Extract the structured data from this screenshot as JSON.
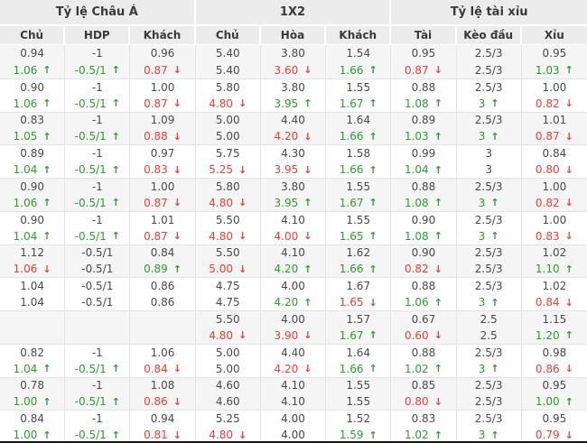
{
  "colors": {
    "header_bg": "#ececec",
    "row_bg": "#ffffff",
    "row_alt_bg": "#f5f5f5",
    "border": "#e3e3e3",
    "text": "#4a4a4a",
    "up_green": "#2e9c2e",
    "down_red": "#ef3e36"
  },
  "icons": {
    "up_arrow": "↑",
    "down_arrow": "↓"
  },
  "header": {
    "groups": [
      {
        "label": "Tỷ lệ Châu Á",
        "columns": [
          "Chủ",
          "HDP",
          "Khách"
        ]
      },
      {
        "label": "1X2",
        "columns": [
          "Chủ",
          "Hòa",
          "Khách"
        ]
      },
      {
        "label": "Tỷ lệ tài xỉu",
        "columns": [
          "Tài",
          "Kèo đầu",
          "Xỉu"
        ]
      }
    ]
  },
  "rows": [
    {
      "alt": true,
      "cells": [
        [
          "0.94",
          "1.06",
          "up"
        ],
        [
          "-1",
          "-0.5/1",
          "up"
        ],
        [
          "0.96",
          "0.87",
          "down"
        ],
        [
          "5.40",
          "5.40",
          ""
        ],
        [
          "3.80",
          "3.60",
          "down"
        ],
        [
          "1.54",
          "1.66",
          "up"
        ],
        [
          "0.95",
          "0.87",
          "down"
        ],
        [
          "2.5/3",
          "2.5/3",
          ""
        ],
        [
          "0.95",
          "1.03",
          "up"
        ]
      ]
    },
    {
      "alt": false,
      "cells": [
        [
          "0.90",
          "1.06",
          "up"
        ],
        [
          "-1",
          "-0.5/1",
          "up"
        ],
        [
          "1.00",
          "0.87",
          "down"
        ],
        [
          "5.80",
          "4.80",
          "down"
        ],
        [
          "3.80",
          "3.95",
          "up"
        ],
        [
          "1.55",
          "1.67",
          "up"
        ],
        [
          "0.88",
          "1.08",
          "up"
        ],
        [
          "2.5/3",
          "3",
          "up"
        ],
        [
          "1.00",
          "0.82",
          "down"
        ]
      ]
    },
    {
      "alt": true,
      "cells": [
        [
          "0.83",
          "1.05",
          "up"
        ],
        [
          "-1",
          "-0.5/1",
          "up"
        ],
        [
          "1.09",
          "0.88",
          "down"
        ],
        [
          "5.00",
          "5.00",
          ""
        ],
        [
          "4.40",
          "4.20",
          "down"
        ],
        [
          "1.64",
          "1.66",
          "up"
        ],
        [
          "0.89",
          "1.03",
          "up"
        ],
        [
          "2.5/3",
          "3",
          "up"
        ],
        [
          "1.01",
          "0.87",
          "down"
        ]
      ]
    },
    {
      "alt": false,
      "cells": [
        [
          "0.89",
          "1.04",
          "up"
        ],
        [
          "-1",
          "-0.5/1",
          "up"
        ],
        [
          "0.97",
          "0.83",
          "down"
        ],
        [
          "5.75",
          "5.25",
          "down"
        ],
        [
          "4.30",
          "3.95",
          "down"
        ],
        [
          "1.58",
          "1.66",
          "up"
        ],
        [
          "0.99",
          "1.04",
          "up"
        ],
        [
          "3",
          "3",
          ""
        ],
        [
          "0.84",
          "0.80",
          "down"
        ]
      ]
    },
    {
      "alt": true,
      "cells": [
        [
          "0.90",
          "1.06",
          "up"
        ],
        [
          "-1",
          "-0.5/1",
          "up"
        ],
        [
          "1.00",
          "0.87",
          "down"
        ],
        [
          "5.80",
          "4.80",
          "down"
        ],
        [
          "3.80",
          "3.95",
          "up"
        ],
        [
          "1.55",
          "1.67",
          "up"
        ],
        [
          "0.88",
          "1.08",
          "up"
        ],
        [
          "2.5/3",
          "3",
          "up"
        ],
        [
          "1.00",
          "0.82",
          "down"
        ]
      ]
    },
    {
      "alt": false,
      "cells": [
        [
          "0.90",
          "1.04",
          "up"
        ],
        [
          "-1",
          "-0.5/1",
          "up"
        ],
        [
          "1.01",
          "0.87",
          "down"
        ],
        [
          "5.50",
          "4.80",
          "down"
        ],
        [
          "4.10",
          "4.00",
          "down"
        ],
        [
          "1.55",
          "1.65",
          "up"
        ],
        [
          "0.90",
          "1.08",
          "up"
        ],
        [
          "2.5/3",
          "3",
          "up"
        ],
        [
          "1.00",
          "0.83",
          "down"
        ]
      ]
    },
    {
      "alt": true,
      "cells": [
        [
          "1.12",
          "1.06",
          "down"
        ],
        [
          "-0.5/1",
          "-0.5/1",
          ""
        ],
        [
          "0.84",
          "0.89",
          "up"
        ],
        [
          "5.50",
          "5.00",
          "down"
        ],
        [
          "4.10",
          "4.20",
          "up"
        ],
        [
          "1.62",
          "1.66",
          "up"
        ],
        [
          "0.90",
          "0.82",
          "down"
        ],
        [
          "2.5/3",
          "2.5/3",
          ""
        ],
        [
          "1.02",
          "1.10",
          "up"
        ]
      ]
    },
    {
      "alt": false,
      "cells": [
        [
          "1.04",
          "1.04",
          ""
        ],
        [
          "-0.5/1",
          "-0.5/1",
          ""
        ],
        [
          "0.86",
          "0.86",
          ""
        ],
        [
          "4.75",
          "4.75",
          ""
        ],
        [
          "4.00",
          "4.20",
          "up"
        ],
        [
          "1.67",
          "1.65",
          "down"
        ],
        [
          "0.88",
          "1.06",
          "up"
        ],
        [
          "2.5/3",
          "3",
          "up"
        ],
        [
          "1.02",
          "0.84",
          "down"
        ]
      ]
    },
    {
      "alt": true,
      "cells": [
        [
          "",
          "",
          ""
        ],
        [
          "",
          "",
          ""
        ],
        [
          "",
          "",
          ""
        ],
        [
          "5.50",
          "4.80",
          "down"
        ],
        [
          "4.00",
          "3.90",
          "down"
        ],
        [
          "1.57",
          "1.67",
          "up"
        ],
        [
          "0.67",
          "0.60",
          "down"
        ],
        [
          "2.5",
          "2.5",
          ""
        ],
        [
          "1.15",
          "1.20",
          "up"
        ]
      ]
    },
    {
      "alt": false,
      "cells": [
        [
          "0.82",
          "1.04",
          "up"
        ],
        [
          "-1",
          "-0.5/1",
          "up"
        ],
        [
          "1.06",
          "0.84",
          "down"
        ],
        [
          "5.00",
          "5.00",
          ""
        ],
        [
          "4.40",
          "4.20",
          "down"
        ],
        [
          "1.64",
          "1.66",
          "up"
        ],
        [
          "0.88",
          "1.02",
          "up"
        ],
        [
          "2.5/3",
          "3",
          "up"
        ],
        [
          "0.98",
          "0.86",
          "down"
        ]
      ]
    },
    {
      "alt": true,
      "cells": [
        [
          "0.78",
          "1.00",
          "up"
        ],
        [
          "-1",
          "-0.5/1",
          "up"
        ],
        [
          "1.08",
          "0.86",
          "down"
        ],
        [
          "4.60",
          "4.60",
          ""
        ],
        [
          "4.10",
          "4.10",
          ""
        ],
        [
          "1.55",
          "1.55",
          ""
        ],
        [
          "0.85",
          "0.80",
          "down"
        ],
        [
          "2.5/3",
          "2.5/3",
          ""
        ],
        [
          "0.95",
          "1.00",
          "up"
        ]
      ]
    },
    {
      "alt": false,
      "cells": [
        [
          "0.84",
          "1.00",
          "up"
        ],
        [
          "-1",
          "-0.5/1",
          "up"
        ],
        [
          "0.94",
          "0.81",
          "down"
        ],
        [
          "5.25",
          "4.80",
          "down"
        ],
        [
          "4.00",
          "4.00",
          ""
        ],
        [
          "1.52",
          "1.59",
          "up"
        ],
        [
          "0.83",
          "1.02",
          "up"
        ],
        [
          "2.5/3",
          "3",
          "up"
        ],
        [
          "0.95",
          "0.79",
          "down"
        ]
      ]
    }
  ]
}
